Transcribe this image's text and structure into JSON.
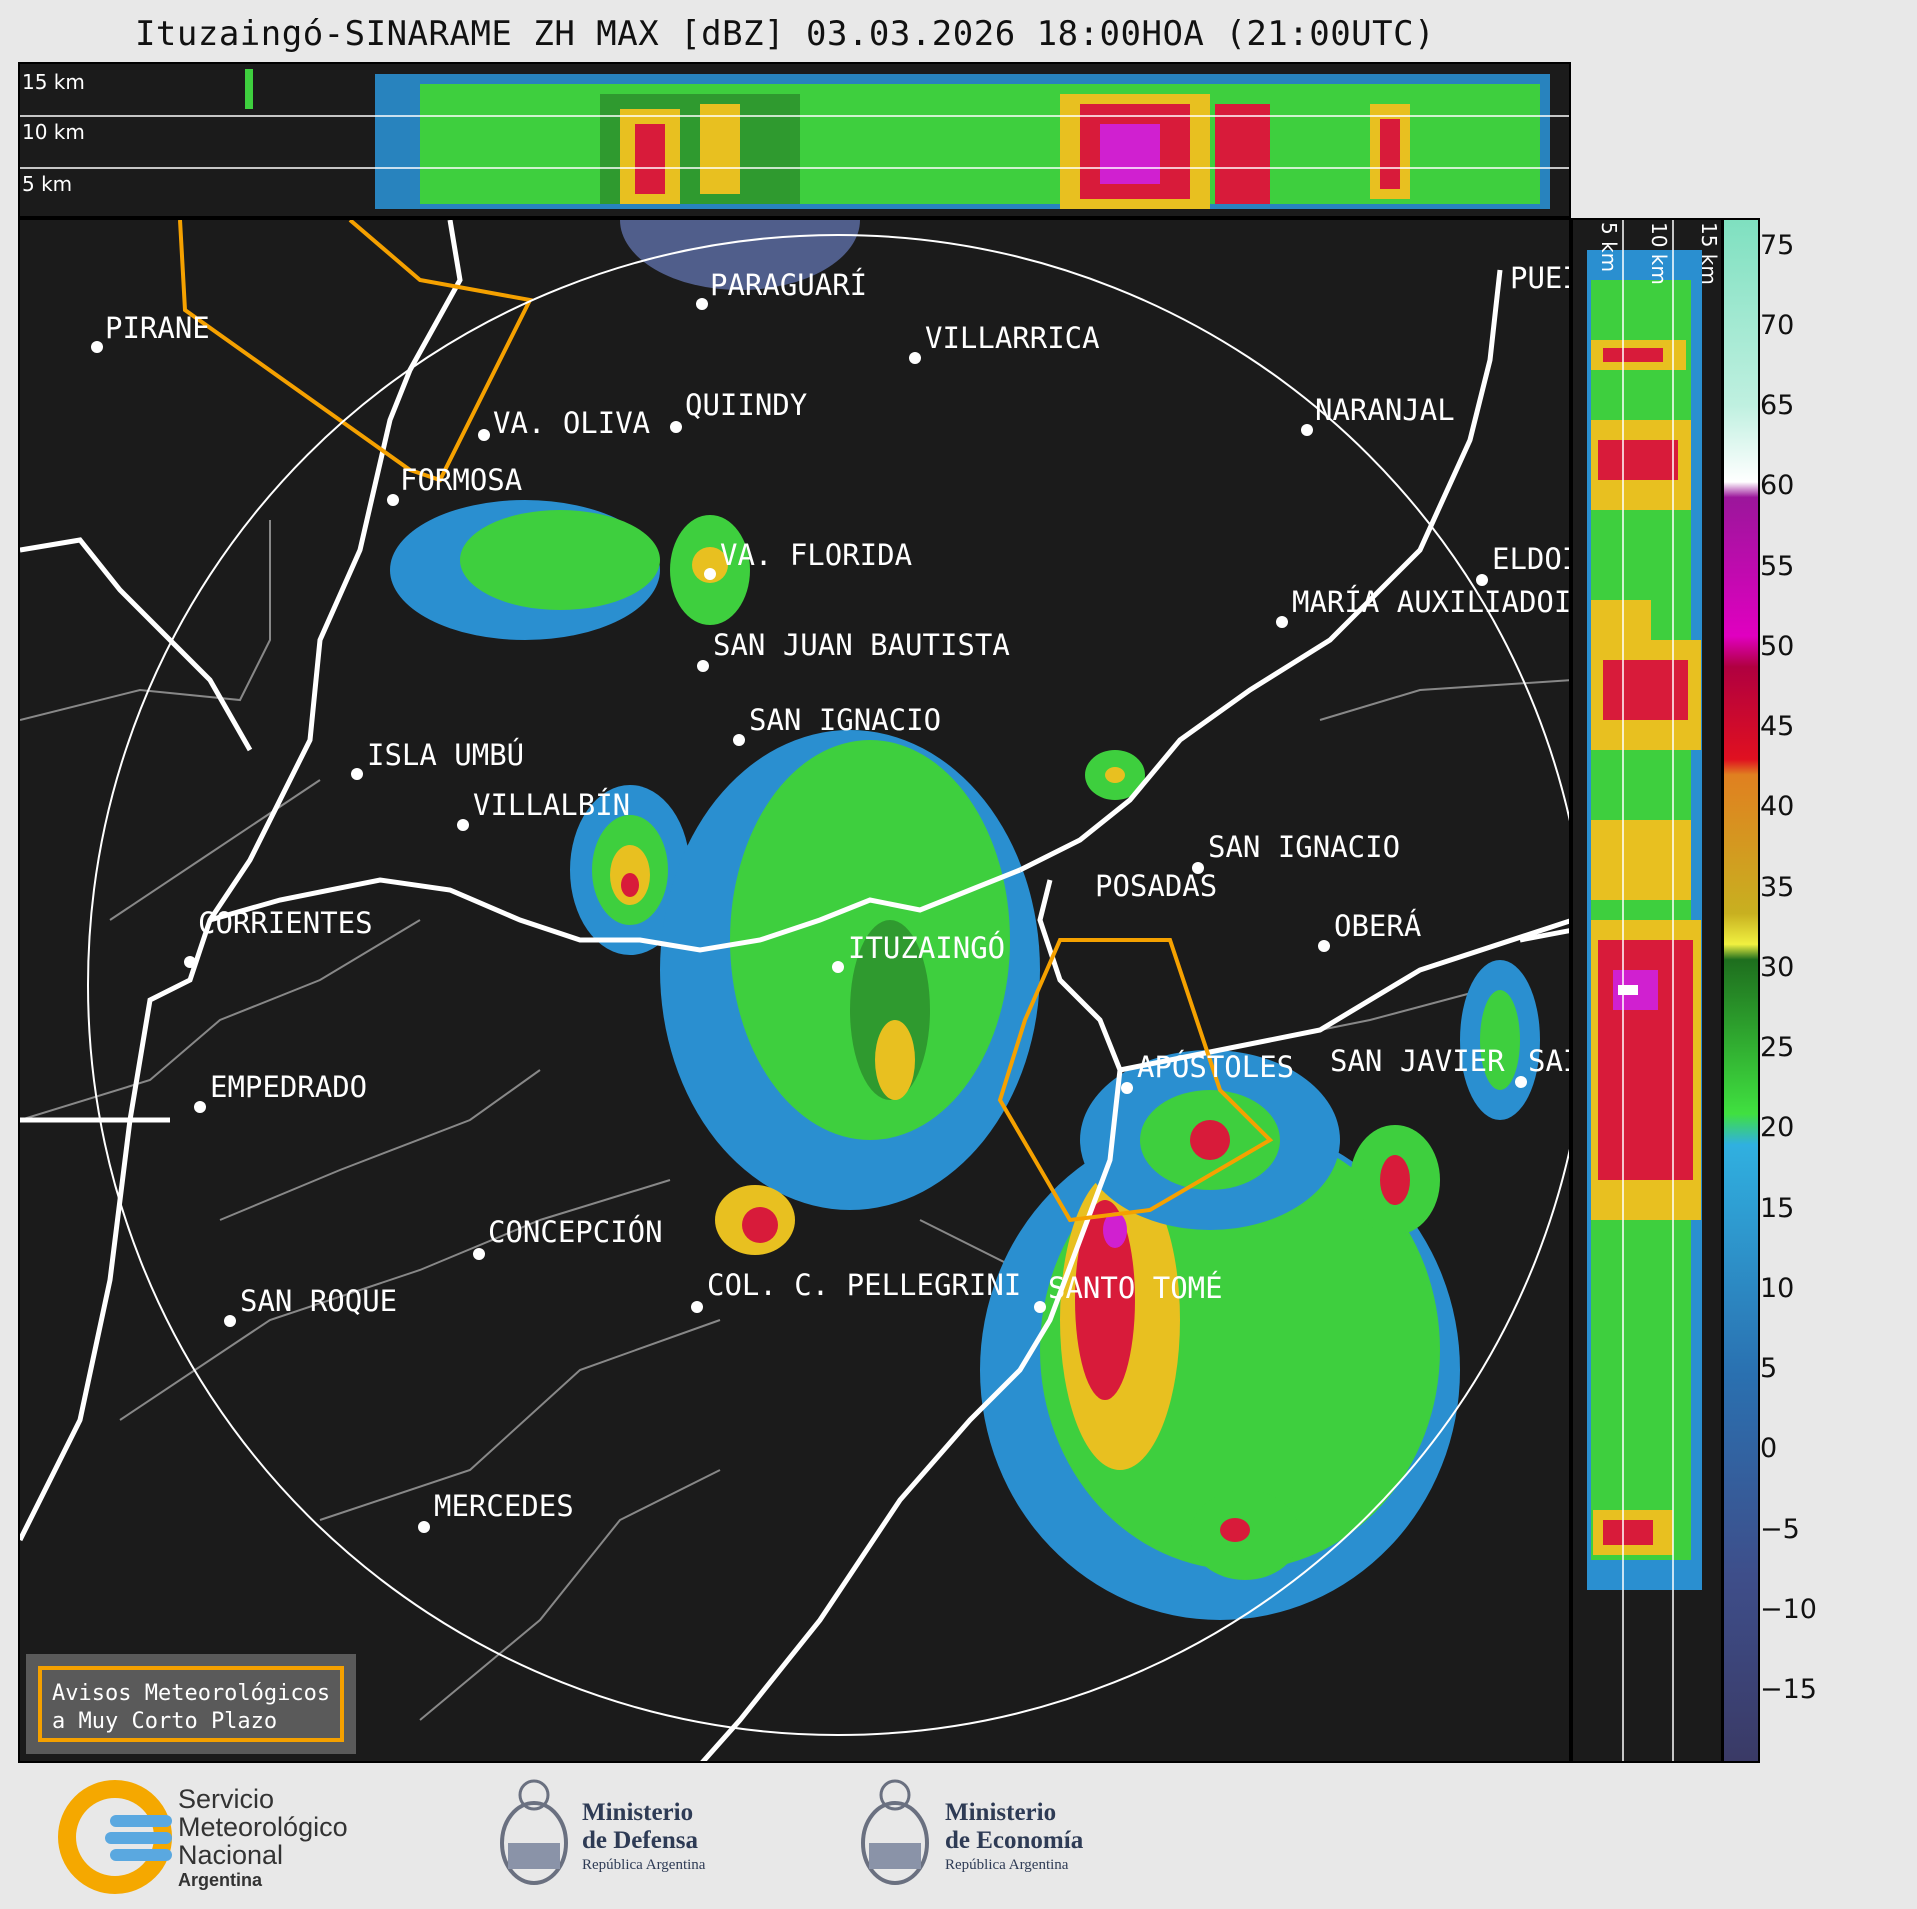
{
  "header": {
    "title": "Ituzaingó-SINARAME ZH MAX [dBZ] 03.03.2026 18:00HOA (21:00UTC)"
  },
  "top_panel": {
    "height_labels": [
      "15 km",
      "10 km",
      "5 km"
    ]
  },
  "side_panel": {
    "height_labels": [
      "5 km",
      "10 km",
      "15 km"
    ]
  },
  "map": {
    "radar_site": "ITUZAINGÓ",
    "cities": [
      "PARAGUARÍ",
      "PIRANE",
      "VILLARRICA",
      "QUIINDY",
      "VA. OLIVA",
      "NARANJAL",
      "FORMOSA",
      "PUEI",
      "VA. FLORIDA",
      "ELDOI",
      "MARÍA AUXILIADOI",
      "SAN JUAN BAUTISTA",
      "SAN IGNACIO",
      "ISLA UMBÚ",
      "VILLALBÍN",
      "SAN IGNACIO",
      "POSADAS",
      "OBERÁ",
      "CORRIENTES",
      "ITUZAINGÓ",
      "APÓSTOLES",
      "SAN JAVIER",
      "SAI",
      "EMPEDRADO",
      "CONCEPCIÓN",
      "COL. C. PELLEGRINI",
      "SANTO TOMÉ",
      "SAN ROQUE",
      "MERCEDES"
    ]
  },
  "colorbar": {
    "units": "dBZ",
    "ticks": [
      "75",
      "70",
      "65",
      "60",
      "55",
      "50",
      "45",
      "40",
      "35",
      "30",
      "25",
      "20",
      "15",
      "10",
      "5",
      "0",
      "−5",
      "−10",
      "−15"
    ],
    "min": -20,
    "max": 76
  },
  "warning_box": {
    "line1": "Avisos Meteorológicos",
    "line2": "a Muy Corto Plazo"
  },
  "footer": {
    "smn": {
      "line1": "Servicio",
      "line2": "Meteorológico",
      "line3": "Nacional",
      "line4": "Argentina"
    },
    "defensa": {
      "line1": "Ministerio",
      "line2": "de Defensa",
      "line3": "República Argentina"
    },
    "economia": {
      "line1": "Ministerio",
      "line2": "de Economía",
      "line3": "República Argentina"
    }
  },
  "colors": {
    "background": "#1b1b1b",
    "border": "#ffffff",
    "warning_polygon": "#f5a100"
  }
}
